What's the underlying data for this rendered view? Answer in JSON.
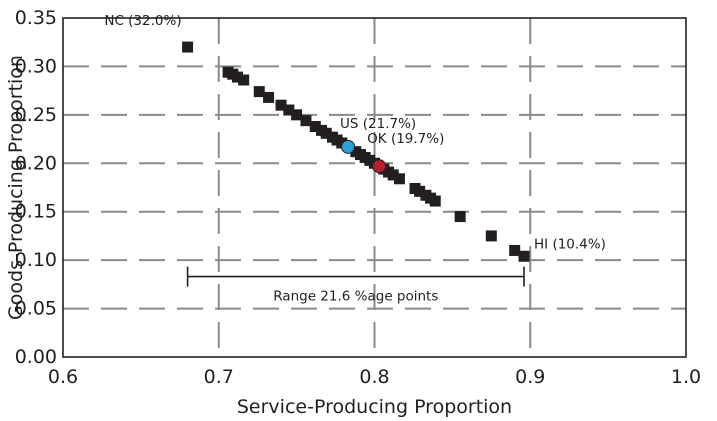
{
  "chart_data": {
    "type": "scatter",
    "title": "",
    "xlabel": "Service-Producing Proportion",
    "ylabel": "Goods-Producing Proportion",
    "xlim": [
      0.6,
      1.0
    ],
    "ylim": [
      0.0,
      0.35
    ],
    "x_ticks": [
      0.6,
      0.7,
      0.8,
      0.9,
      1.0
    ],
    "x_tick_labels": [
      "0.6",
      "0.7",
      "0.8",
      "0.9",
      "1.0"
    ],
    "y_ticks": [
      0.0,
      0.05,
      0.1,
      0.15,
      0.2,
      0.25,
      0.3,
      0.35
    ],
    "y_tick_labels": [
      "0.00",
      "0.05",
      "0.10",
      "0.15",
      "0.20",
      "0.25",
      "0.30",
      "0.35"
    ],
    "grid": true,
    "grid_style": "dashed",
    "colors": {
      "states": "#231f20",
      "us": "#2a9fd8",
      "ok": "#b5202e",
      "grid": "#8a8a8a"
    },
    "series": [
      {
        "marker": "square",
        "color": "#231f20",
        "points": [
          {
            "x": 0.68,
            "y": 0.32
          },
          {
            "x": 0.706,
            "y": 0.294
          },
          {
            "x": 0.709,
            "y": 0.292
          },
          {
            "x": 0.712,
            "y": 0.289
          },
          {
            "x": 0.716,
            "y": 0.286
          },
          {
            "x": 0.726,
            "y": 0.274
          },
          {
            "x": 0.732,
            "y": 0.268
          },
          {
            "x": 0.74,
            "y": 0.26
          },
          {
            "x": 0.745,
            "y": 0.255
          },
          {
            "x": 0.75,
            "y": 0.25
          },
          {
            "x": 0.756,
            "y": 0.244
          },
          {
            "x": 0.762,
            "y": 0.238
          },
          {
            "x": 0.766,
            "y": 0.234
          },
          {
            "x": 0.769,
            "y": 0.231
          },
          {
            "x": 0.773,
            "y": 0.227
          },
          {
            "x": 0.776,
            "y": 0.224
          },
          {
            "x": 0.779,
            "y": 0.221
          },
          {
            "x": 0.788,
            "y": 0.212
          },
          {
            "x": 0.791,
            "y": 0.209
          },
          {
            "x": 0.794,
            "y": 0.206
          },
          {
            "x": 0.797,
            "y": 0.203
          },
          {
            "x": 0.8,
            "y": 0.2
          },
          {
            "x": 0.806,
            "y": 0.194
          },
          {
            "x": 0.809,
            "y": 0.191
          },
          {
            "x": 0.812,
            "y": 0.188
          },
          {
            "x": 0.816,
            "y": 0.184
          },
          {
            "x": 0.826,
            "y": 0.174
          },
          {
            "x": 0.829,
            "y": 0.171
          },
          {
            "x": 0.833,
            "y": 0.167
          },
          {
            "x": 0.836,
            "y": 0.164
          },
          {
            "x": 0.839,
            "y": 0.161
          },
          {
            "x": 0.855,
            "y": 0.145
          },
          {
            "x": 0.875,
            "y": 0.125
          },
          {
            "x": 0.89,
            "y": 0.11
          },
          {
            "x": 0.896,
            "y": 0.104
          }
        ]
      },
      {
        "marker": "circle",
        "color": "#2a9fd8",
        "points": [
          {
            "x": 0.783,
            "y": 0.217
          }
        ]
      },
      {
        "marker": "circle",
        "color": "#b5202e",
        "points": [
          {
            "x": 0.803,
            "y": 0.197
          }
        ]
      }
    ],
    "annotations": [
      {
        "text": "NC (32.0%)",
        "x": 0.68,
        "y": 0.32
      },
      {
        "text": "US (21.7%)",
        "x": 0.783,
        "y": 0.217
      },
      {
        "text": "OK (19.7%)",
        "x": 0.803,
        "y": 0.197
      },
      {
        "text": "HI (10.4%)",
        "x": 0.896,
        "y": 0.104
      }
    ],
    "range_bracket": {
      "x_start": 0.68,
      "x_end": 0.896,
      "y": 0.083,
      "label": "Range 21.6 %age points"
    }
  }
}
